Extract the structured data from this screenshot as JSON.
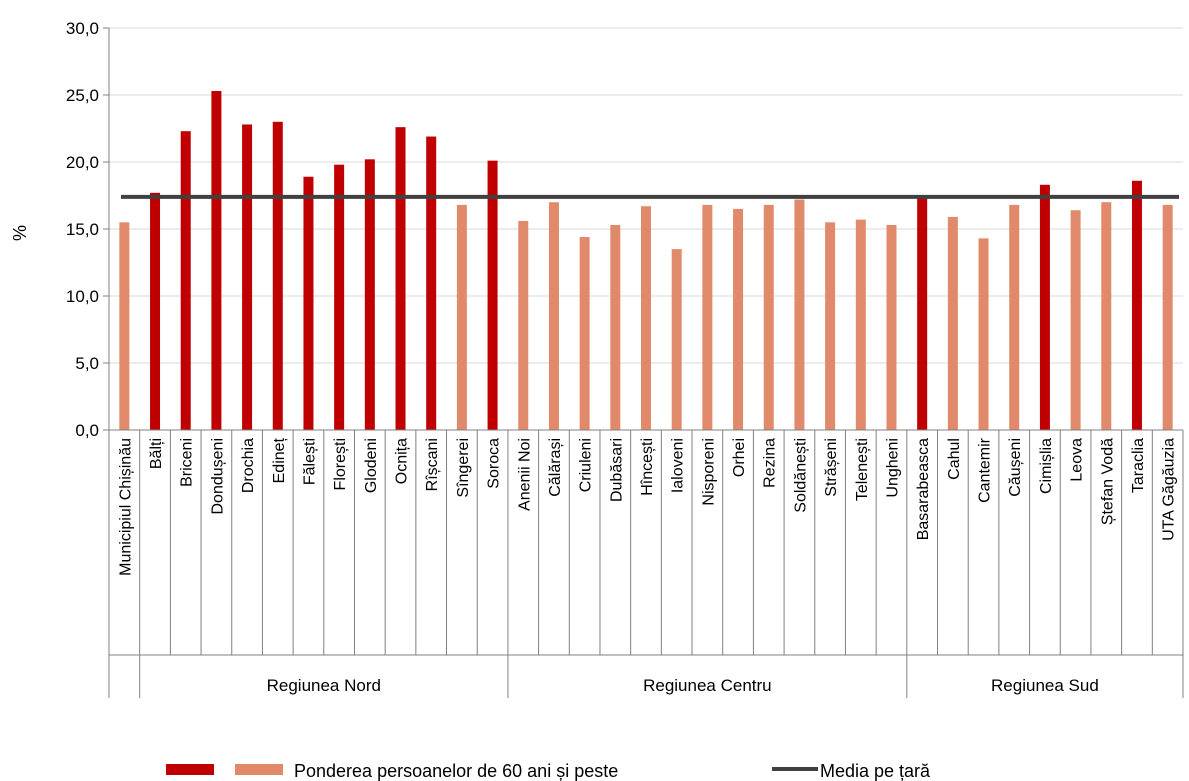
{
  "chart_data": {
    "type": "bar",
    "ylabel": "%",
    "ylim": [
      0,
      30
    ],
    "yticks": [
      "0,0",
      "5,0",
      "10,0",
      "15,0",
      "20,0",
      "25,0",
      "30,0"
    ],
    "grid": true,
    "legend_position": "bottom",
    "colors": {
      "highlight": "#c00000",
      "regular": "#e08a6b",
      "average": "#404040"
    },
    "categories": [
      "Municipiul Chișinău",
      "Bălți",
      "Briceni",
      "Dondușeni",
      "Drochia",
      "Edineț",
      "Fălești",
      "Florești",
      "Glodeni",
      "Ocnița",
      "Rîșcani",
      "Sîngerei",
      "Soroca",
      "Anenii Noi",
      "Călărași",
      "Criuleni",
      "Dubăsari",
      "Hîncești",
      "Ialoveni",
      "Nisporeni",
      "Orhei",
      "Rezina",
      "Soldănești",
      "Strășeni",
      "Telenești",
      "Ungheni",
      "Basarabeasca",
      "Cahul",
      "Cantemir",
      "Căușeni",
      "Cimișlia",
      "Leova",
      "Ștefan Vodă",
      "Taraclia",
      "UTA Găgăuzia"
    ],
    "values": [
      15.5,
      17.7,
      22.3,
      25.3,
      22.8,
      23.0,
      18.9,
      19.8,
      20.2,
      22.6,
      21.9,
      16.8,
      20.1,
      15.6,
      17.0,
      14.4,
      15.3,
      16.7,
      13.5,
      16.8,
      16.5,
      16.8,
      17.2,
      15.5,
      15.7,
      15.3,
      17.4,
      15.9,
      14.3,
      16.8,
      18.3,
      16.4,
      17.0,
      18.6,
      16.8
    ],
    "above_average": [
      false,
      true,
      true,
      true,
      true,
      true,
      true,
      true,
      true,
      true,
      true,
      false,
      true,
      false,
      false,
      false,
      false,
      false,
      false,
      false,
      false,
      false,
      false,
      false,
      false,
      false,
      true,
      false,
      false,
      false,
      true,
      false,
      false,
      true,
      false
    ],
    "average": {
      "name": "Media pe țară",
      "value": 17.4
    },
    "groups": [
      {
        "label": "",
        "start": 0,
        "end": 0
      },
      {
        "label": "Regiunea Nord",
        "start": 1,
        "end": 12
      },
      {
        "label": "Regiunea Centru",
        "start": 13,
        "end": 25
      },
      {
        "label": "Regiunea Sud",
        "start": 26,
        "end": 34
      }
    ],
    "legend": {
      "bars": "Ponderea persoanelor de 60 ani și peste",
      "line": "Media pe țară"
    }
  }
}
